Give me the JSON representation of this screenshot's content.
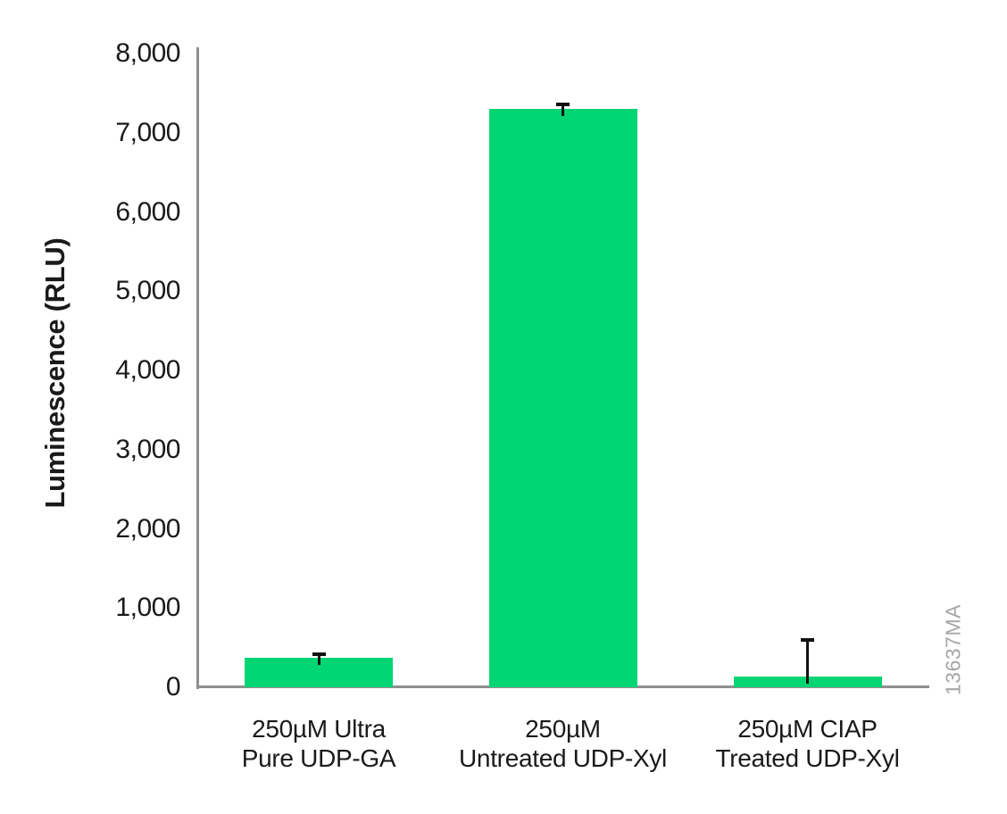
{
  "chart_data": {
    "type": "bar",
    "title": "",
    "xlabel": "",
    "ylabel": "Luminescence (RLU)",
    "ylim": [
      0,
      8000
    ],
    "ytick_step": 1000,
    "ytick_labels": [
      "0",
      "1,000",
      "2,000",
      "3,000",
      "4,000",
      "5,000",
      "6,000",
      "7,000",
      "8,000"
    ],
    "categories": [
      [
        "250µM Ultra",
        "Pure UDP-GA"
      ],
      [
        "250µM",
        "Untreated UDP-Xyl"
      ],
      [
        "250µM CIAP",
        "Treated UDP-Xyl"
      ]
    ],
    "values": [
      370,
      7300,
      130
    ],
    "errors": [
      50,
      60,
      470
    ],
    "grid": false,
    "legend": null,
    "bar_color": "#00d573",
    "axis_color": "#8f8f8f",
    "error_bar_color": "#111111",
    "text_color": "#1a1a1a",
    "watermark_color": "#a6a6a6"
  },
  "watermark": "13637MA"
}
